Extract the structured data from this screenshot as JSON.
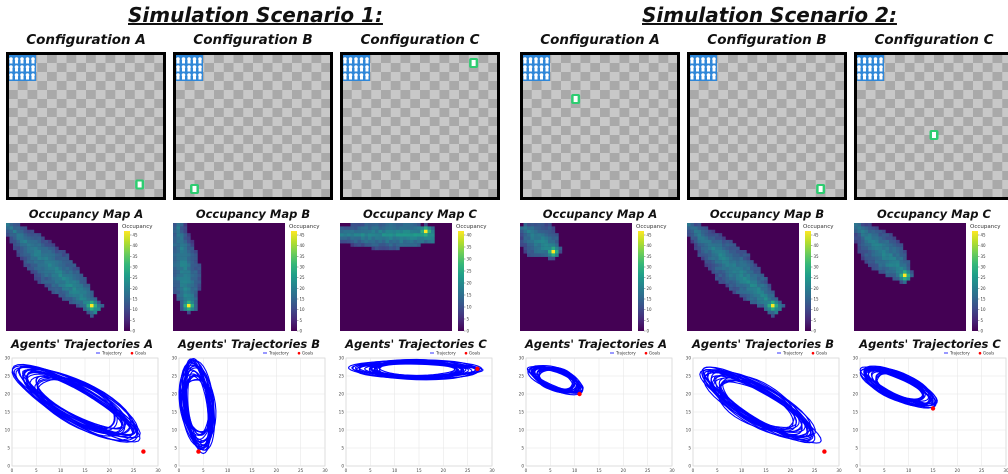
{
  "scenarios": [
    {
      "title": "Simulation Scenario 1:",
      "configs": [
        {
          "title": "Configuration A",
          "goal_cell": [
            27,
            29
          ],
          "occ_title": "Occupancy Map A",
          "occ_peak": [
            24,
            24
          ],
          "occ_axis": "diagonal",
          "cbar_max": 45,
          "traj_title": "Agents' Trajectories A",
          "traj_shape": {
            "cx": 13.5,
            "cy": 17.5,
            "rx": 16,
            "ry": 5.5,
            "angle": -38
          },
          "goal": [
            27,
            4
          ]
        },
        {
          "title": "Configuration B",
          "goal_cell": [
            4,
            30
          ],
          "occ_title": "Occupancy Map B",
          "occ_peak": [
            4,
            24
          ],
          "occ_axis": "vertical",
          "cbar_max": 45,
          "traj_title": "Agents' Trajectories B",
          "traj_shape": {
            "cx": 3.8,
            "cy": 17,
            "rx": 3.5,
            "ry": 13,
            "angle": 5
          },
          "goal": [
            4,
            4
          ]
        },
        {
          "title": "Configuration C",
          "goal_cell": [
            27,
            2
          ],
          "occ_title": "Occupancy Map C",
          "occ_peak": [
            24,
            2
          ],
          "occ_axis": "horizontal",
          "cbar_max": 40,
          "traj_title": "Agents' Trajectories C",
          "traj_shape": {
            "cx": 14.5,
            "cy": 26.8,
            "rx": 14,
            "ry": 2.8,
            "angle": -1
          },
          "goal": [
            27,
            27
          ]
        }
      ]
    },
    {
      "title": "Simulation Scenario 2:",
      "configs": [
        {
          "title": "Configuration A",
          "goal_cell": [
            11,
            10
          ],
          "occ_title": "Occupancy Map A",
          "occ_peak": [
            9,
            8
          ],
          "occ_axis": "diagonal-short",
          "cbar_max": 45,
          "traj_title": "Agents' Trajectories A",
          "traj_shape": {
            "cx": 6.2,
            "cy": 24,
            "rx": 6.5,
            "ry": 3.2,
            "angle": -30
          },
          "goal": [
            11,
            20
          ]
        },
        {
          "title": "Configuration B",
          "goal_cell": [
            27,
            30
          ],
          "occ_title": "Occupancy Map B",
          "occ_peak": [
            24,
            24
          ],
          "occ_axis": "diagonal",
          "cbar_max": 45,
          "traj_title": "Agents' Trajectories B",
          "traj_shape": {
            "cx": 13.5,
            "cy": 17,
            "rx": 16,
            "ry": 5.5,
            "angle": -40
          },
          "goal": [
            27,
            4
          ]
        },
        {
          "title": "Configuration C",
          "goal_cell": [
            16,
            18
          ],
          "occ_title": "Occupancy Map C",
          "occ_peak": [
            14,
            15
          ],
          "occ_axis": "diagonal-mid",
          "cbar_max": 45,
          "traj_title": "Agents' Trajectories C",
          "traj_shape": {
            "cx": 8,
            "cy": 22,
            "rx": 9,
            "ry": 3.6,
            "angle": -33
          },
          "goal": [
            15,
            16
          ]
        }
      ]
    }
  ],
  "colorbar_label": "Occupancy",
  "colorbar_ticks": [
    0,
    5,
    10,
    15,
    20,
    25,
    30,
    35,
    40,
    45
  ],
  "legend": {
    "trajectory": "Trajectory",
    "goals": "Goals"
  },
  "traj_axes": {
    "x_ticks": [
      0,
      5,
      10,
      15,
      20,
      25,
      30
    ],
    "y_ticks": [
      0,
      5,
      10,
      15,
      20,
      25,
      30
    ],
    "xlim": [
      0,
      30
    ],
    "ylim": [
      0,
      30
    ]
  },
  "colors": {
    "trajectory": "#0000ff",
    "goal": "#ff0000",
    "goal_marker": "#2ecc71",
    "start_marker": "#2f87d8",
    "occ_bg": "#440154"
  }
}
